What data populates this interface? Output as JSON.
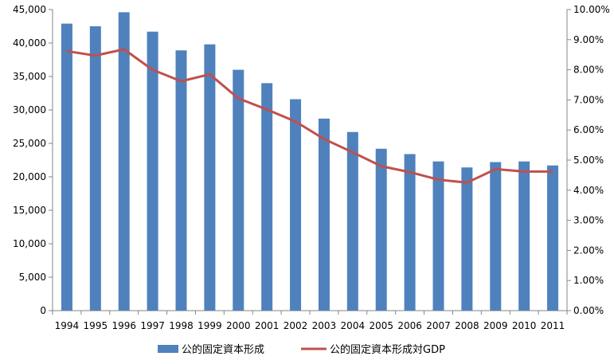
{
  "chart_data": {
    "type": "bar",
    "categories": [
      "1994",
      "1995",
      "1996",
      "1997",
      "1998",
      "1999",
      "2000",
      "2001",
      "2002",
      "2003",
      "2004",
      "2005",
      "2006",
      "2007",
      "2008",
      "2009",
      "2010",
      "2011"
    ],
    "series": [
      {
        "name": "公的固定資本形成",
        "type": "bar",
        "axis": "left",
        "color": "#4F81BD",
        "values": [
          42900,
          42500,
          44600,
          41700,
          38900,
          39800,
          36000,
          34000,
          31600,
          28700,
          26700,
          24200,
          23400,
          22300,
          21400,
          22200,
          22300,
          21700
        ]
      },
      {
        "name": "公的固定資本形成対GDP",
        "type": "line",
        "axis": "right",
        "color": "#C0504D",
        "values": [
          0.0862,
          0.0847,
          0.0868,
          0.08,
          0.0762,
          0.0785,
          0.0705,
          0.0668,
          0.0628,
          0.057,
          0.0526,
          0.048,
          0.046,
          0.0435,
          0.0425,
          0.047,
          0.0462,
          0.0462
        ]
      }
    ],
    "y_left": {
      "min": 0,
      "max": 45000,
      "step": 5000,
      "tick_labels": [
        "0",
        "5,000",
        "10,000",
        "15,000",
        "20,000",
        "25,000",
        "30,000",
        "35,000",
        "40,000",
        "45,000"
      ]
    },
    "y_right": {
      "min": 0,
      "max": 0.1,
      "step": 0.01,
      "tick_labels": [
        "0.00%",
        "1.00%",
        "2.00%",
        "3.00%",
        "4.00%",
        "5.00%",
        "6.00%",
        "7.00%",
        "8.00%",
        "9.00%",
        "10.00%"
      ]
    },
    "grid": false,
    "legend_position": "bottom"
  }
}
